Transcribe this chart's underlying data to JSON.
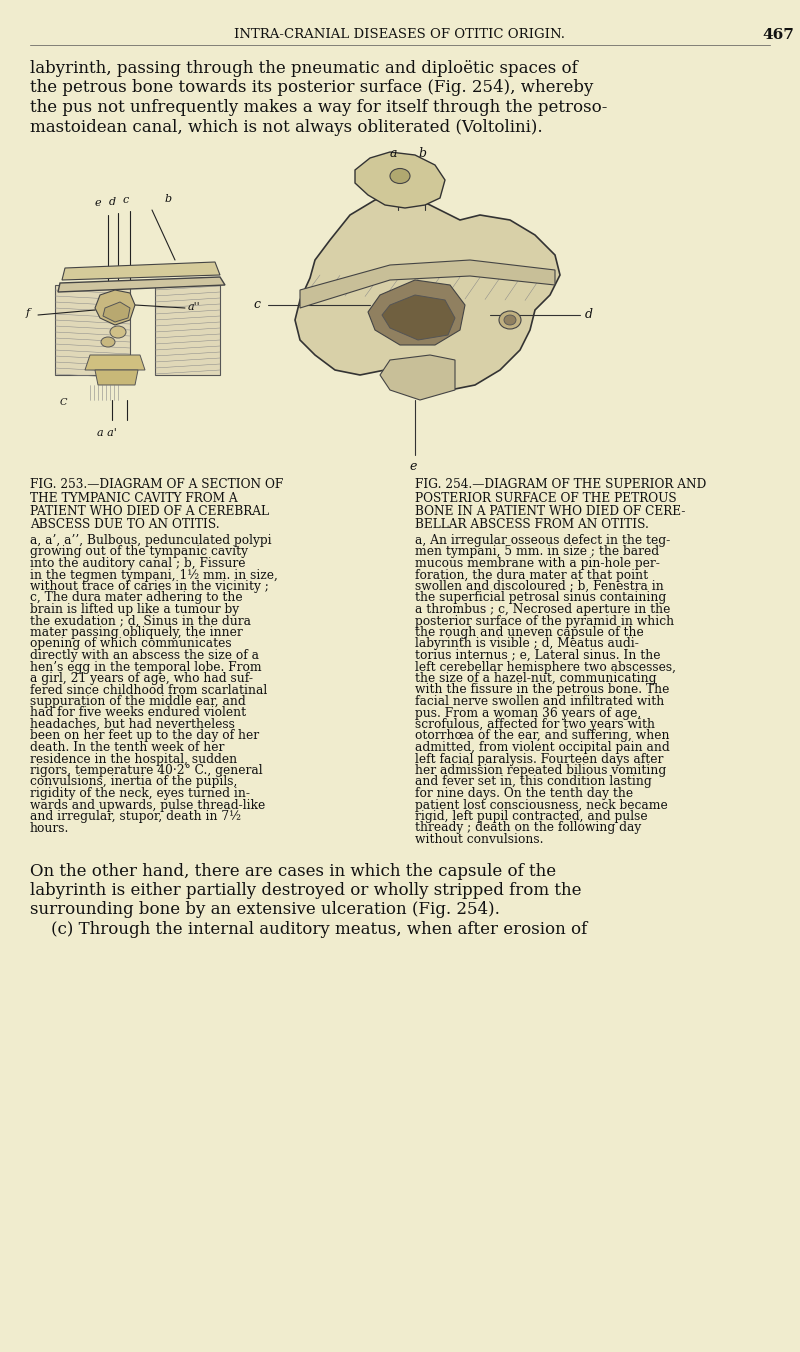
{
  "bg_color": "#f0ecce",
  "text_color": "#111111",
  "header_title": "INTRA-CRANIAL DISEASES OF OTITIC ORIGIN.",
  "header_page": "467",
  "para1_lines": [
    "labyrinth, passing through the pneumatic and diplоëtic spaces of",
    "the petrous bone towards its posterior surface (Fig. 254), whereby",
    "the pus not unfrequently makes a way for itself through the petroso-",
    "mastoidean canal, which is not always obliterated (Voltolini)."
  ],
  "fig253_title_lines": [
    "Fig. 253.—Diagram of a Section of",
    "the Tympanic Cavity from a",
    "Patient who died of a Cerebral",
    "Abscess due to an Otitis."
  ],
  "fig253_body_lines": [
    "a, a’, a’’, Bulbous, pedunculated polypi",
    "growing out of the tympanic cavity",
    "into the auditory canal ; b, Fissure",
    "in the tegmen tympani, 1½ mm. in size,",
    "without trace of caries in the vicinity ;",
    "c, The dura mater adhering to the",
    "brain is lifted up like a tumour by",
    "the exudation ; d, Sinus in the dura",
    "mater passing obliquely, the inner",
    "opening of which communicates",
    "directly with an abscess the size of a",
    "hen’s egg in the temporal lobe. From",
    "a girl, 21 years of age, who had suf-",
    "fered since childhood from scarlatinal",
    "suppuration of the middle ear, and",
    "had for five weeks endured violent",
    "headaches, but had nevertheless",
    "been on her feet up to the day of her",
    "death. In the tenth week of her",
    "residence in the hospital, sudden",
    "rigors, temperature 40·2° C., general",
    "convulsions, inertia of the pupils,",
    "rigidity of the neck, eyes turned in-",
    "wards and upwards, pulse thread-like",
    "and irregular, stupor, death in 7½",
    "hours."
  ],
  "fig254_title_lines": [
    "Fig. 254.—Diagram of the Superior and",
    "Posterior Surface of the Petrous",
    "Bone in a Patient who died of Cere-",
    "bellar Abscess from an Otitis."
  ],
  "fig254_body_lines": [
    "a, An irregular osseous defect in the teg-",
    "men tympani, 5 mm. in size ; the bared",
    "mucous membrane with a pin-hole per-",
    "foration, the dura mater at that point",
    "swollen and discoloured ; b, Fenestra in",
    "the superficial petrosal sinus containing",
    "a thrombus ; c, Necrosed aperture in the",
    "posterior surface of the pyramid in which",
    "the rough and uneven capsule of the",
    "labyrinth is visible ; d, Meatus audi-",
    "torius internus ; e, Lateral sinus. In the",
    "left cerebellar hemisphere two abscesses,",
    "the size of a hazel-nut, communicating",
    "with the fissure in the petrous bone. The",
    "facial nerve swollen and infiltrated with",
    "pus. From a woman 36 years of age,",
    "scrofulous, affected for two years with",
    "otorrhœa of the ear, and suffering, when",
    "admitted, from violent occipital pain and",
    "left facial paralysis. Fourteen days after",
    "her admission repeated bilious vomiting",
    "and fever set in, this condition lasting",
    "for nine days. On the tenth day the",
    "patient lost consciousness, neck became",
    "rigid, left pupil contracted, and pulse",
    "thready ; death on the following day",
    "without convulsions."
  ],
  "para_bottom_lines": [
    "On the other hand, there are cases in which the capsule of the",
    "labyrinth is either partially destroyed or wholly stripped from the",
    "surrounding bone by an extensive ulceration (Fig. 254).",
    "",
    "    (c) Through the internal auditory meatus, when after erosion of"
  ]
}
